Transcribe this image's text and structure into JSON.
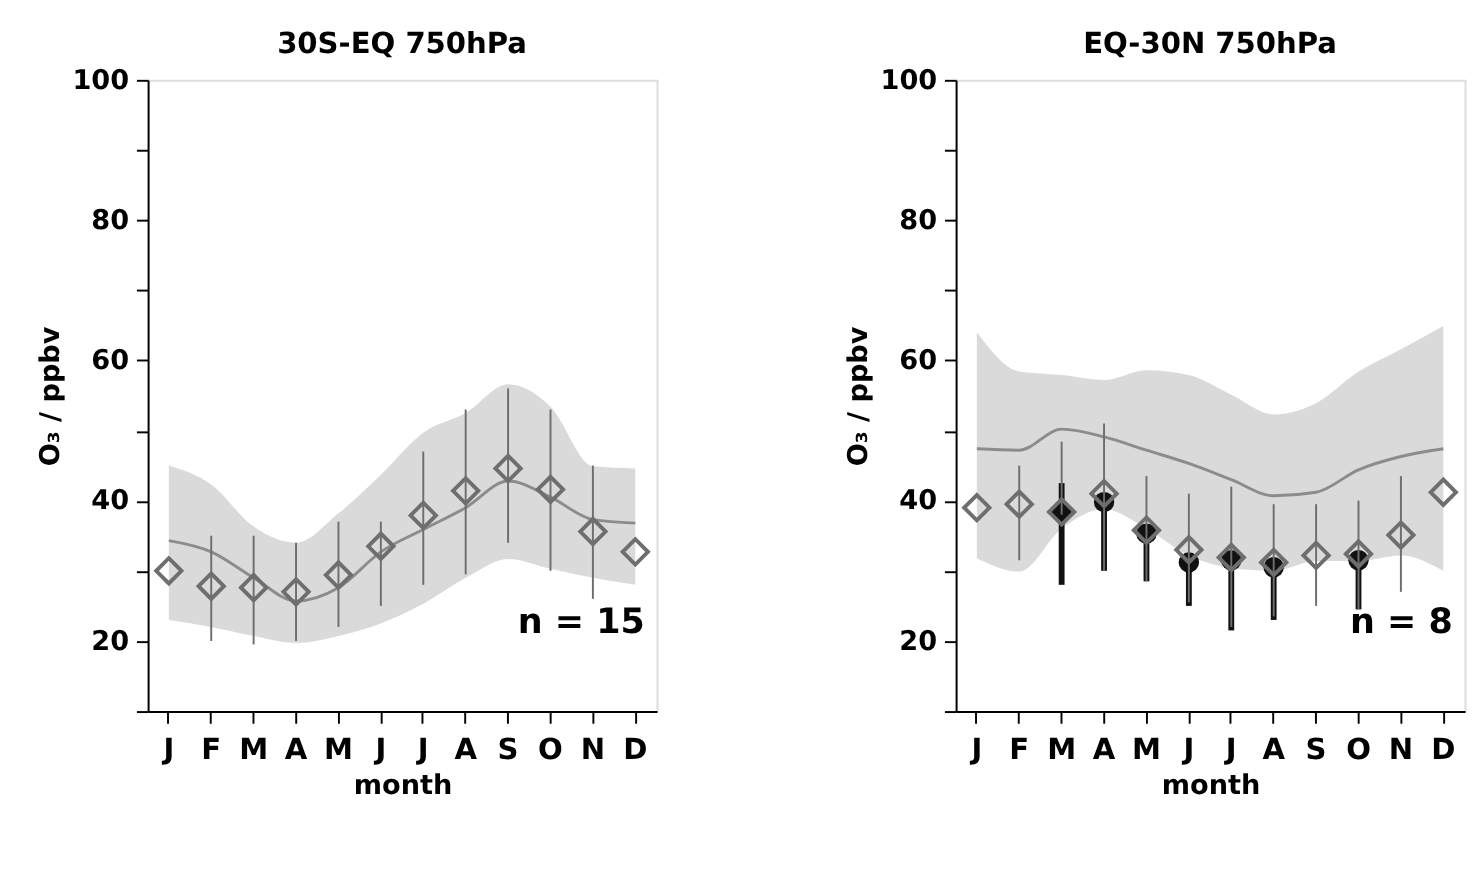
{
  "chart_data": [
    {
      "type": "line",
      "title": "30S-EQ 750hPa",
      "xlabel": "month",
      "ylabel": "O₃ / ppbv",
      "categories": [
        "J",
        "F",
        "M",
        "A",
        "M",
        "J",
        "J",
        "A",
        "S",
        "O",
        "N",
        "D"
      ],
      "ylim": [
        10,
        100
      ],
      "yticks": [
        {
          "value": 10,
          "label": null
        },
        20,
        {
          "value": 30,
          "label": null
        },
        40,
        {
          "value": 50,
          "label": null
        },
        60,
        {
          "value": 70,
          "label": null
        },
        80,
        {
          "value": 90,
          "label": null
        },
        100
      ],
      "grid": false,
      "annotations": [
        "n = 15"
      ],
      "series": [
        {
          "marker": "none",
          "color": "#8c8c8c",
          "values": [
            34.3,
            32.7,
            29,
            25.7,
            27.6,
            32.7,
            35.9,
            39,
            42.8,
            40.5,
            37.3,
            36.8
          ],
          "lower": [
            23,
            22,
            20.7,
            19.7,
            20.7,
            22.5,
            25.3,
            29,
            31.7,
            30.3,
            29,
            28
          ],
          "upper": [
            45,
            42.3,
            36.3,
            34,
            38.2,
            43.7,
            49.7,
            52.5,
            56.6,
            53.4,
            44.9,
            44.6
          ]
        },
        {
          "type": "scatter",
          "marker": "diamond",
          "color": "#6e6e6e",
          "values": [
            30,
            27.8,
            27.6,
            27,
            29.4,
            33.5,
            37.9,
            41.4,
            44.6,
            41.6,
            35.6,
            32.7
          ],
          "errors": [
            null,
            [
              20,
              35
            ],
            [
              19.5,
              35
            ],
            [
              20,
              34
            ],
            [
              22,
              37
            ],
            [
              25,
              37
            ],
            [
              28,
              47
            ],
            [
              29.5,
              53
            ],
            [
              34,
              56
            ],
            [
              30,
              53
            ],
            [
              26,
              45
            ],
            null
          ]
        }
      ]
    },
    {
      "type": "line",
      "title": "EQ-30N 750hPa",
      "xlabel": "month",
      "ylabel": "O₃ / ppbv",
      "categories": [
        "J",
        "F",
        "M",
        "A",
        "M",
        "J",
        "J",
        "A",
        "S",
        "O",
        "N",
        "D"
      ],
      "ylim": [
        10,
        100
      ],
      "yticks": [
        {
          "value": 10,
          "label": null
        },
        20,
        {
          "value": 30,
          "label": null
        },
        40,
        {
          "value": 50,
          "label": null
        },
        60,
        {
          "value": 70,
          "label": null
        },
        80,
        {
          "value": 90,
          "label": null
        },
        100
      ],
      "grid": false,
      "annotations": [
        "n = 8"
      ],
      "series": [
        {
          "marker": "none",
          "color": "#8c8c8c",
          "values": [
            47.4,
            47.2,
            50.2,
            49.1,
            47.2,
            45.3,
            43,
            40.7,
            41.2,
            44.4,
            46.3,
            47.4
          ],
          "lower": [
            31.8,
            29.9,
            36,
            38.8,
            36,
            32.2,
            30.4,
            30,
            31.4,
            31.4,
            32.2,
            30
          ],
          "upper": [
            64,
            58.4,
            57.9,
            57.2,
            58.6,
            57.9,
            55.1,
            52.3,
            53.9,
            58.4,
            61.6,
            64.9
          ]
        },
        {
          "type": "scatter",
          "marker": "circle",
          "color": "#111111",
          "values": [
            null,
            null,
            38.4,
            39.8,
            35.3,
            31.2,
            31.5,
            30.5,
            null,
            31.5,
            null,
            null
          ],
          "errors": [
            null,
            null,
            [
              28,
              42.5
            ],
            [
              30,
              40
            ],
            [
              28.5,
              36
            ],
            [
              25,
              32
            ],
            [
              21.5,
              32
            ],
            [
              23,
              31
            ],
            null,
            [
              24.5,
              32
            ],
            null,
            null
          ]
        },
        {
          "type": "scatter",
          "marker": "diamond",
          "color": "#6e6e6e",
          "values": [
            39,
            39.5,
            38.4,
            41,
            35.8,
            33,
            31.9,
            31.2,
            32.2,
            32.4,
            35.1,
            41.2
          ],
          "errors": [
            null,
            [
              31.5,
              45
            ],
            [
              38,
              48.4
            ],
            [
              30,
              51
            ],
            [
              28.5,
              43.5
            ],
            [
              25.5,
              41
            ],
            [
              22,
              42
            ],
            [
              23.5,
              39.5
            ],
            [
              25,
              39.5
            ],
            [
              24.5,
              40
            ],
            [
              27,
              43.5
            ],
            null
          ]
        }
      ]
    }
  ]
}
